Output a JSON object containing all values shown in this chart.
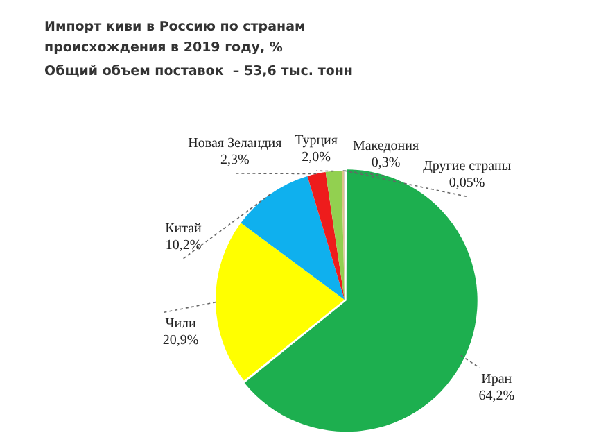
{
  "chart_data": {
    "type": "pie",
    "title": "Импорт киви в Россию по странам происхождения в 2019 году, %",
    "subtitle": "Общий объем поставок  – 53,6 тыс. тонн",
    "categories": [
      "Иран",
      "Чили",
      "Китай",
      "Новая Зеландия",
      "Турция",
      "Македония",
      "Другие страны"
    ],
    "values": [
      64.2,
      20.9,
      10.2,
      2.3,
      2.0,
      0.3,
      0.05
    ],
    "value_labels": [
      "64,2%",
      "20,9%",
      "10,2%",
      "2,3%",
      "2,0%",
      "0,3%",
      "0,05%"
    ],
    "colors": [
      "#1daf4f",
      "#ffff00",
      "#0fb0ee",
      "#ee1c1c",
      "#92d050",
      "#dcc48c",
      "#bdbdbd"
    ],
    "legend": false
  }
}
